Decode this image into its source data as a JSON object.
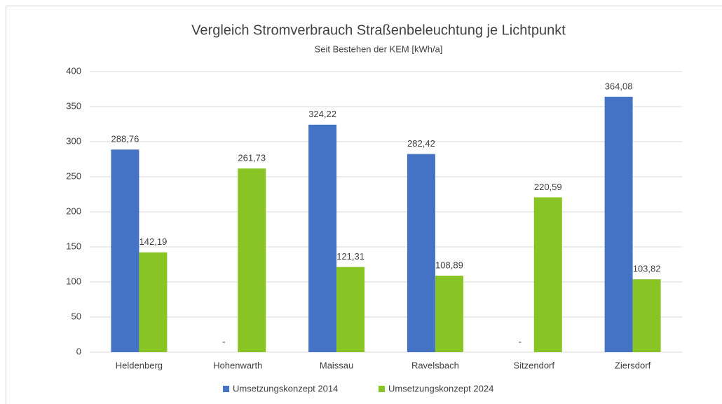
{
  "chart_data": {
    "type": "bar",
    "title": "Vergleich Stromverbrauch Straßenbeleuchtung je Lichtpunkt",
    "subtitle": "Seit Bestehen der KEM [kWh/a]",
    "categories": [
      "Heldenberg",
      "Hohenwarth",
      "Maissau",
      "Ravelsbach",
      "Sitzendorf",
      "Ziersdorf"
    ],
    "series": [
      {
        "name": "Umsetzungskonzept 2014",
        "color": "#4472c4",
        "values": [
          288.76,
          null,
          324.22,
          282.42,
          null,
          364.08
        ],
        "value_labels": [
          "288,76",
          "-",
          "324,22",
          "282,42",
          "-",
          "364,08"
        ]
      },
      {
        "name": "Umsetzungskonzept 2024",
        "color": "#88c424",
        "values": [
          142.19,
          261.73,
          121.31,
          108.89,
          220.59,
          103.82
        ],
        "value_labels": [
          "142,19",
          "261,73",
          "121,31",
          "108,89",
          "220,59",
          "103,82"
        ]
      }
    ],
    "ylim": [
      0,
      400
    ],
    "yticks": [
      0,
      50,
      100,
      150,
      200,
      250,
      300,
      350,
      400
    ],
    "grid": true,
    "legend": "bottom"
  }
}
